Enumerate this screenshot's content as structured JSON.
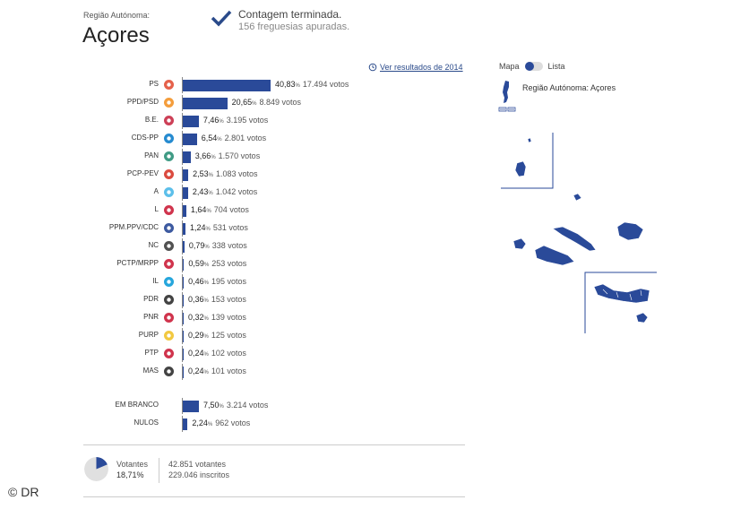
{
  "header": {
    "region_label": "Região Autónoma:",
    "region_title": "Açores",
    "count_title": "Contagem terminada.",
    "count_sub": "156 freguesias apuradas.",
    "history_link": "Ver resultados de 2014"
  },
  "colors": {
    "bar": "#2a4a99",
    "accent": "#2a4a8a"
  },
  "parties": [
    {
      "name": "PS",
      "pct": "40,83",
      "votes": "17.494 votos",
      "value": 40.83,
      "icon": "ps-logo-icon"
    },
    {
      "name": "PPD/PSD",
      "pct": "20,65",
      "votes": "8.849 votos",
      "value": 20.65,
      "icon": "psd-logo-icon"
    },
    {
      "name": "B.E.",
      "pct": "7,46",
      "votes": "3.195 votos",
      "value": 7.46,
      "icon": "be-logo-icon"
    },
    {
      "name": "CDS-PP",
      "pct": "6,54",
      "votes": "2.801 votos",
      "value": 6.54,
      "icon": "cds-logo-icon"
    },
    {
      "name": "PAN",
      "pct": "3,66",
      "votes": "1.570 votos",
      "value": 3.66,
      "icon": "pan-logo-icon"
    },
    {
      "name": "PCP-PEV",
      "pct": "2,53",
      "votes": "1.083 votos",
      "value": 2.53,
      "icon": "pcp-logo-icon"
    },
    {
      "name": "A",
      "pct": "2,43",
      "votes": "1.042 votos",
      "value": 2.43,
      "icon": "alianca-logo-icon"
    },
    {
      "name": "L",
      "pct": "1,64",
      "votes": "704 votos",
      "value": 1.64,
      "icon": "livre-logo-icon"
    },
    {
      "name": "PPM.PPV/CDC",
      "pct": "1,24",
      "votes": "531 votos",
      "value": 1.24,
      "icon": "ppm-logo-icon"
    },
    {
      "name": "NC",
      "pct": "0,79",
      "votes": "338 votos",
      "value": 0.79,
      "icon": "nc-logo-icon"
    },
    {
      "name": "PCTP/MRPP",
      "pct": "0,59",
      "votes": "253 votos",
      "value": 0.59,
      "icon": "mrpp-logo-icon"
    },
    {
      "name": "IL",
      "pct": "0,46",
      "votes": "195 votos",
      "value": 0.46,
      "icon": "il-logo-icon"
    },
    {
      "name": "PDR",
      "pct": "0,36",
      "votes": "153 votos",
      "value": 0.36,
      "icon": "pdr-logo-icon"
    },
    {
      "name": "PNR",
      "pct": "0,32",
      "votes": "139 votos",
      "value": 0.32,
      "icon": "pnr-logo-icon"
    },
    {
      "name": "PURP",
      "pct": "0,29",
      "votes": "125 votos",
      "value": 0.29,
      "icon": "purp-logo-icon"
    },
    {
      "name": "PTP",
      "pct": "0,24",
      "votes": "102 votos",
      "value": 0.24,
      "icon": "ptp-logo-icon"
    },
    {
      "name": "MAS",
      "pct": "0,24",
      "votes": "101 votos",
      "value": 0.24,
      "icon": "mas-logo-icon"
    }
  ],
  "blank_null": [
    {
      "name": "EM BRANCO",
      "pct": "7,50",
      "votes": "3.214 votos",
      "value": 7.5
    },
    {
      "name": "NULOS",
      "pct": "2,24",
      "votes": "962 votos",
      "value": 2.24
    }
  ],
  "percent_sign": "%",
  "turnout": {
    "label": "Votantes",
    "pct": "18,71%",
    "value": 18.71,
    "voters": "42.851 votantes",
    "registered": "229.046 inscritos"
  },
  "map": {
    "toggle_left": "Mapa",
    "toggle_right": "Lista",
    "title": "Região Autónoma: Açores"
  },
  "credit": "© DR"
}
